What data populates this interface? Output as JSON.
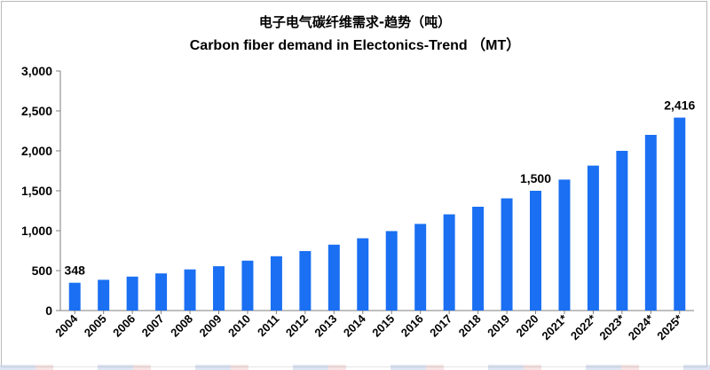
{
  "chart_data": {
    "type": "bar",
    "title_cn": "电子电气碳纤维需求-趋势（吨）",
    "title_en": "Carbon fiber demand  in Electonics-Trend  （MT）",
    "categories": [
      "2004",
      "2005",
      "2006",
      "2007",
      "2008",
      "2009",
      "2010",
      "2011",
      "2012",
      "2013",
      "2014",
      "2015",
      "2016",
      "2017",
      "2018",
      "2019",
      "2020",
      "2021*",
      "2022*",
      "2023*",
      "2024*",
      "2025*"
    ],
    "values": [
      348,
      385,
      425,
      465,
      515,
      555,
      625,
      680,
      745,
      825,
      905,
      995,
      1085,
      1205,
      1300,
      1405,
      1500,
      1640,
      1815,
      2000,
      2200,
      2416
    ],
    "data_labels": [
      {
        "category": "2004",
        "text": "348"
      },
      {
        "category": "2020",
        "text": "1,500"
      },
      {
        "category": "2025*",
        "text": "2,416"
      }
    ],
    "yticks": [
      "0",
      "500",
      "1,000",
      "1,500",
      "2,000",
      "2,500",
      "3,000"
    ],
    "ylim": [
      0,
      3000
    ],
    "grid": false,
    "legend": "none",
    "bar_color": "#1a6ff2"
  }
}
